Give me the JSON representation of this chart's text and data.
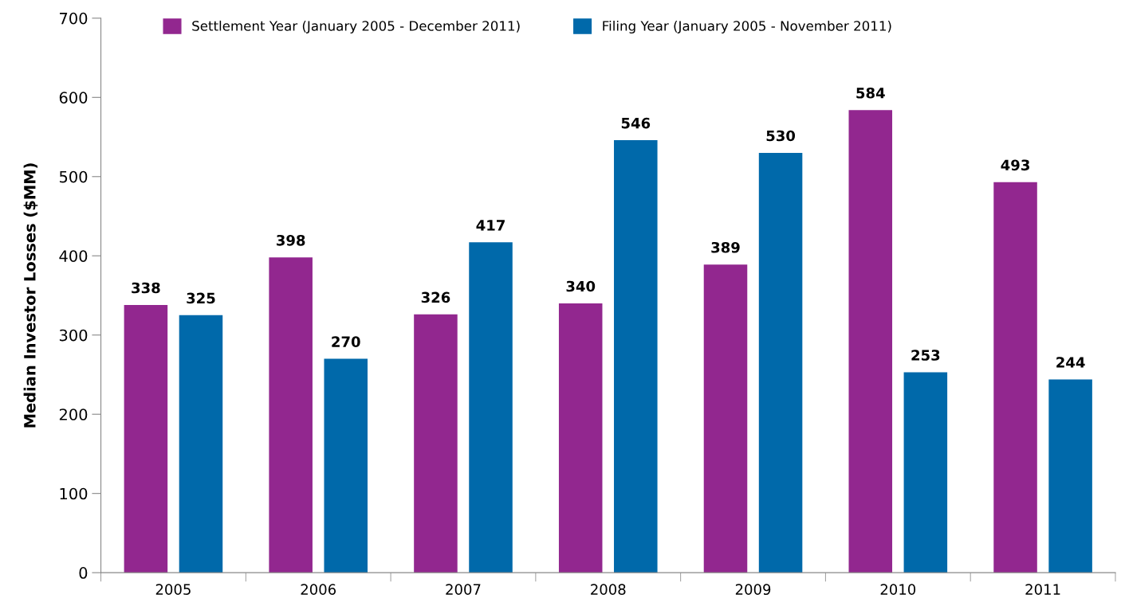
{
  "chart_data": {
    "type": "bar",
    "ylabel": "Median Investor Losses ($MM)",
    "categories": [
      "2005",
      "2006",
      "2007",
      "2008",
      "2009",
      "2010",
      "2011"
    ],
    "series": [
      {
        "name": "Settlement Year (January 2005 - December 2011)",
        "color": "#92278f",
        "values": [
          338,
          398,
          326,
          340,
          389,
          584,
          493
        ]
      },
      {
        "name": "Filing Year (January 2005 - November 2011)",
        "color": "#0069aa",
        "values": [
          325,
          270,
          417,
          546,
          530,
          253,
          244
        ]
      }
    ],
    "ylim": [
      0,
      700
    ],
    "yticks": [
      0,
      100,
      200,
      300,
      400,
      500,
      600,
      700
    ],
    "data_labels": true,
    "legend": "top left",
    "grid": false
  }
}
